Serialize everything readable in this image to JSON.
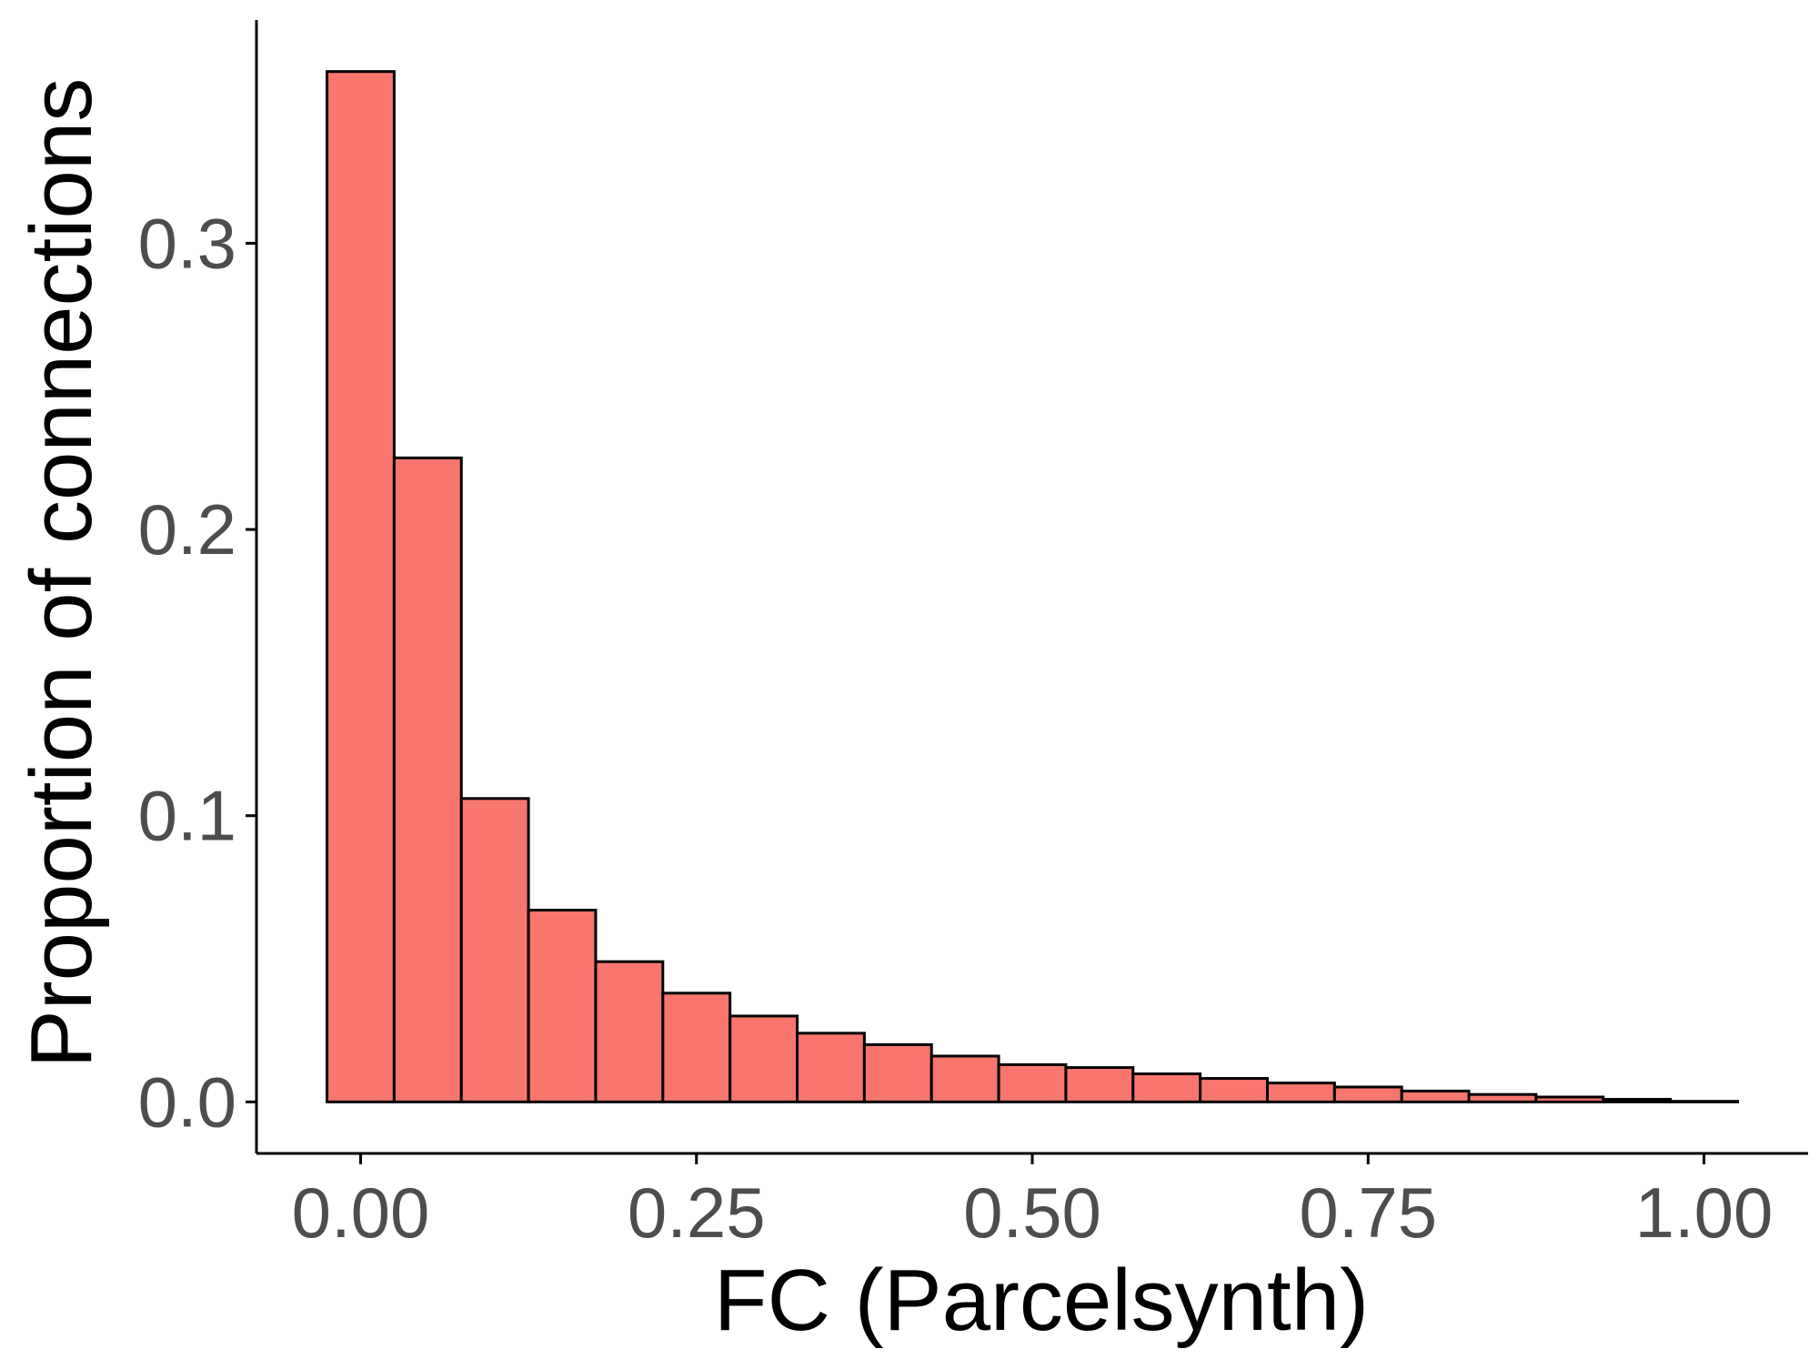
{
  "chart_data": {
    "type": "bar",
    "bin_width": 0.05,
    "bin_centers": [
      0.0,
      0.05,
      0.1,
      0.15,
      0.2,
      0.25,
      0.3,
      0.35,
      0.4,
      0.45,
      0.5,
      0.55,
      0.6,
      0.65,
      0.7,
      0.75,
      0.8,
      0.85,
      0.9,
      0.95,
      1.0
    ],
    "values": [
      0.36,
      0.225,
      0.106,
      0.067,
      0.049,
      0.038,
      0.03,
      0.024,
      0.02,
      0.016,
      0.013,
      0.012,
      0.0098,
      0.0082,
      0.0066,
      0.0052,
      0.0038,
      0.0026,
      0.0017,
      0.0009,
      0.0002
    ],
    "bar_fill": "#F8766D",
    "bar_outline": "#000000",
    "xlabel": "FC (Parcelsynth)",
    "ylabel": "Proportion of connections",
    "xticks": [
      0.0,
      0.25,
      0.5,
      0.75,
      1.0
    ],
    "xtick_labels": [
      "0.00",
      "0.25",
      "0.50",
      "0.75",
      "1.00"
    ],
    "yticks": [
      0.0,
      0.1,
      0.2,
      0.3
    ],
    "ytick_labels": [
      "0.0",
      "0.1",
      "0.2",
      "0.3"
    ],
    "xlim": [
      -0.0775,
      1.0775
    ],
    "ylim": [
      -0.018,
      0.378
    ],
    "grid": false,
    "legend": "none"
  }
}
